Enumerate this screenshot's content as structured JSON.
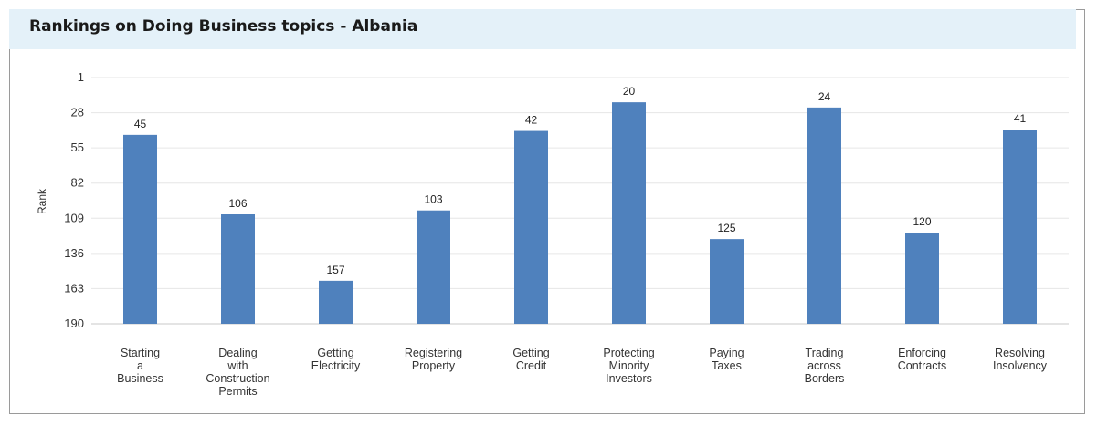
{
  "title": "Rankings on Doing Business topics - Albania",
  "chart_data": {
    "type": "bar",
    "title": "Rankings on Doing Business topics - Albania",
    "ylabel": "Rank",
    "xlabel": "",
    "y_axis_inverted": true,
    "ylim": [
      1,
      190
    ],
    "yticks": [
      1,
      28,
      55,
      82,
      109,
      136,
      163,
      190
    ],
    "grid": true,
    "bar_color": "#4f81bd",
    "categories": [
      [
        "Starting",
        "a",
        "Business"
      ],
      [
        "Dealing",
        "with",
        "Construction",
        "Permits"
      ],
      [
        "Getting",
        "Electricity"
      ],
      [
        "Registering",
        "Property"
      ],
      [
        "Getting",
        "Credit"
      ],
      [
        "Protecting",
        "Minority",
        "Investors"
      ],
      [
        "Paying",
        "Taxes"
      ],
      [
        "Trading",
        "across",
        "Borders"
      ],
      [
        "Enforcing",
        "Contracts"
      ],
      [
        "Resolving",
        "Insolvency"
      ]
    ],
    "values": [
      45,
      106,
      157,
      103,
      42,
      20,
      125,
      24,
      120,
      41
    ]
  }
}
